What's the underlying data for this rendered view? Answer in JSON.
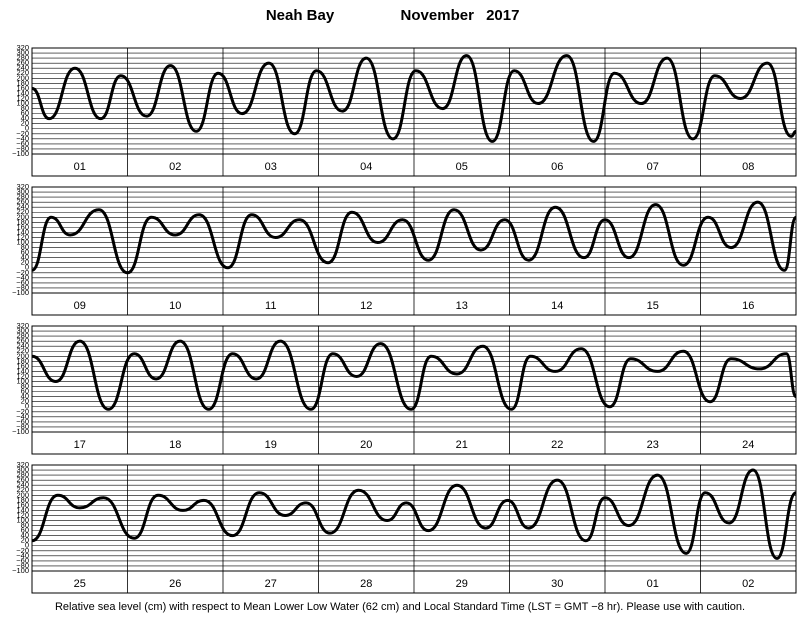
{
  "title": "Neah Bay",
  "period": "November 2017",
  "note": "Relative sea level (cm) with respect to Mean Lower Low Water (62 cm) and Local Standard Time (LST = GMT −8 hr). Please use with caution.",
  "chart_data": [
    {
      "type": "line",
      "color": "#000000",
      "categories": [
        "01",
        "02",
        "03",
        "04",
        "05",
        "06",
        "07",
        "08"
      ],
      "xlim": [
        0,
        8
      ],
      "ylim": [
        -100,
        320
      ],
      "yticks": [
        {
          "value": -100,
          "label": "−100"
        },
        {
          "value": -80,
          "label": "−80"
        },
        {
          "value": -60,
          "label": "−60"
        },
        {
          "value": -40,
          "label": "−40"
        },
        {
          "value": -20,
          "label": "−20"
        },
        0,
        20,
        40,
        60,
        80,
        100,
        120,
        140,
        160,
        180,
        200,
        220,
        240,
        260,
        280,
        300,
        320
      ],
      "x": [
        0,
        0.18,
        0.45,
        0.72,
        0.93,
        1.2,
        1.45,
        1.72,
        1.95,
        2.2,
        2.48,
        2.75,
        2.98,
        3.25,
        3.5,
        3.78,
        4.02,
        4.3,
        4.55,
        4.82,
        5.05,
        5.3,
        5.6,
        5.88,
        6.1,
        6.38,
        6.65,
        6.92,
        7.15,
        7.42,
        7.7,
        7.95,
        8
      ],
      "values": [
        160,
        40,
        240,
        40,
        210,
        50,
        250,
        -10,
        220,
        60,
        260,
        -20,
        230,
        70,
        280,
        -40,
        230,
        80,
        290,
        -50,
        230,
        100,
        290,
        -50,
        220,
        100,
        280,
        -40,
        210,
        120,
        260,
        -30,
        -10
      ]
    },
    {
      "type": "line",
      "color": "#000000",
      "categories": [
        "09",
        "10",
        "11",
        "12",
        "13",
        "14",
        "15",
        "16"
      ],
      "xlim": [
        0,
        8
      ],
      "ylim": [
        -100,
        320
      ],
      "yticks": [
        {
          "value": -100,
          "label": "−100"
        },
        {
          "value": -80,
          "label": "−80"
        },
        {
          "value": -60,
          "label": "−60"
        },
        {
          "value": -40,
          "label": "−40"
        },
        {
          "value": -20,
          "label": "−20"
        },
        0,
        20,
        40,
        60,
        80,
        100,
        120,
        140,
        160,
        180,
        200,
        220,
        240,
        260,
        280,
        300,
        320
      ],
      "x": [
        0,
        0.2,
        0.4,
        0.7,
        1.0,
        1.25,
        1.5,
        1.75,
        2.05,
        2.3,
        2.55,
        2.8,
        3.1,
        3.35,
        3.62,
        3.88,
        4.15,
        4.42,
        4.7,
        4.95,
        5.2,
        5.48,
        5.78,
        6.0,
        6.25,
        6.53,
        6.82,
        7.08,
        7.32,
        7.6,
        7.88,
        8
      ],
      "values": [
        -10,
        200,
        130,
        230,
        -20,
        200,
        130,
        210,
        0,
        210,
        120,
        190,
        20,
        220,
        100,
        190,
        30,
        230,
        70,
        190,
        30,
        240,
        40,
        190,
        40,
        250,
        10,
        200,
        80,
        260,
        -10,
        200
      ]
    },
    {
      "type": "line",
      "color": "#000000",
      "categories": [
        "17",
        "18",
        "19",
        "20",
        "21",
        "22",
        "23",
        "24"
      ],
      "xlim": [
        0,
        8
      ],
      "ylim": [
        -100,
        320
      ],
      "yticks": [
        {
          "value": -100,
          "label": "−100"
        },
        {
          "value": -80,
          "label": "−80"
        },
        {
          "value": -60,
          "label": "−60"
        },
        {
          "value": -40,
          "label": "−40"
        },
        {
          "value": -20,
          "label": "−20"
        },
        0,
        20,
        40,
        60,
        80,
        100,
        120,
        140,
        160,
        180,
        200,
        220,
        240,
        260,
        280,
        300,
        320
      ],
      "x": [
        0,
        0.25,
        0.5,
        0.8,
        1.07,
        1.3,
        1.55,
        1.85,
        2.1,
        2.35,
        2.6,
        2.92,
        3.15,
        3.4,
        3.65,
        3.97,
        4.18,
        4.45,
        4.72,
        5.02,
        5.22,
        5.48,
        5.75,
        6.05,
        6.27,
        6.55,
        6.82,
        7.1,
        7.32,
        7.62,
        7.9,
        8
      ],
      "values": [
        200,
        100,
        260,
        -10,
        210,
        110,
        260,
        -10,
        210,
        110,
        260,
        -10,
        210,
        120,
        250,
        -10,
        200,
        130,
        240,
        -10,
        200,
        140,
        230,
        0,
        190,
        140,
        220,
        20,
        190,
        150,
        210,
        40
      ]
    },
    {
      "type": "line",
      "color": "#000000",
      "categories": [
        "25",
        "26",
        "27",
        "28",
        "29",
        "30",
        "01",
        "02"
      ],
      "xlim": [
        0,
        8
      ],
      "ylim": [
        -100,
        320
      ],
      "yticks": [
        {
          "value": -100,
          "label": "−100"
        },
        {
          "value": -80,
          "label": "−80"
        },
        {
          "value": -60,
          "label": "−60"
        },
        {
          "value": -40,
          "label": "−40"
        },
        {
          "value": -20,
          "label": "−20"
        },
        0,
        20,
        40,
        60,
        80,
        100,
        120,
        140,
        160,
        180,
        200,
        220,
        240,
        260,
        280,
        300,
        320
      ],
      "x": [
        0,
        0.27,
        0.5,
        0.75,
        1.07,
        1.32,
        1.58,
        1.8,
        2.1,
        2.38,
        2.65,
        2.87,
        3.12,
        3.42,
        3.72,
        3.92,
        4.15,
        4.45,
        4.75,
        4.98,
        5.2,
        5.5,
        5.8,
        6.0,
        6.25,
        6.55,
        6.85,
        7.05,
        7.3,
        7.55,
        7.8,
        8
      ],
      "values": [
        20,
        200,
        150,
        190,
        30,
        200,
        140,
        180,
        40,
        210,
        120,
        170,
        50,
        220,
        100,
        170,
        60,
        240,
        70,
        180,
        70,
        260,
        20,
        190,
        80,
        280,
        -30,
        210,
        90,
        300,
        -50,
        210
      ]
    }
  ]
}
